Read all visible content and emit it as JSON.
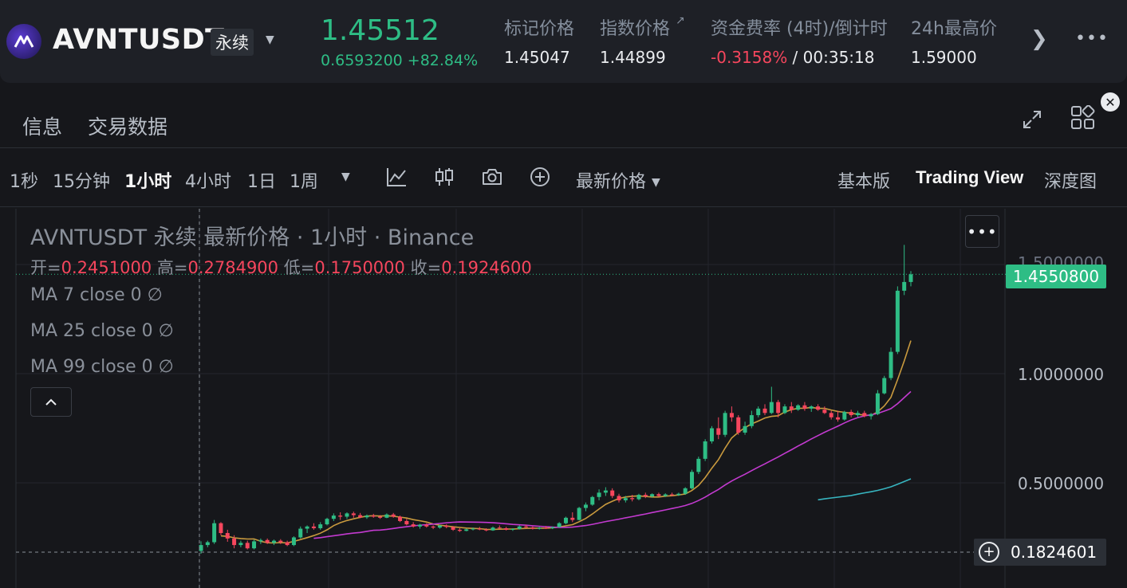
{
  "header": {
    "symbol": "AVNTUSDT",
    "contract_type": "永续",
    "last_price": "1.45512",
    "change_abs": "0.6593200",
    "change_pct": "+82.84%",
    "stats": [
      {
        "label": "标记价格",
        "value": "1.45047"
      },
      {
        "label": "指数价格",
        "value": "1.44899"
      },
      {
        "label": "资金费率 (4时)/倒计时",
        "funding_rate": "-0.3158%",
        "countdown": "00:35:18"
      },
      {
        "label": "24h最高价",
        "value": "1.59000"
      }
    ]
  },
  "tabs": [
    "信息",
    "交易数据"
  ],
  "toolbar": {
    "timeframes": [
      "1秒",
      "15分钟",
      "1小时",
      "4小时",
      "1日",
      "1周"
    ],
    "active_timeframe": "1小时",
    "price_type": "最新价格",
    "views": [
      "基本版",
      "Trading View",
      "深度图"
    ],
    "active_view": "Trading View"
  },
  "chart_legend": {
    "title": "AVNTUSDT 永续 最新价格 · 1小时 · Binance",
    "open_label": "开=",
    "open": "0.2451000",
    "high_label": "高=",
    "high": "0.2784900",
    "low_label": "低=",
    "low": "0.1750000",
    "close_label": "收=",
    "close": "0.1924600",
    "ma": [
      {
        "label": "MA 7 close 0",
        "value": "∅"
      },
      {
        "label": "MA 25 close 0",
        "value": "∅"
      },
      {
        "label": "MA 99 close 0",
        "value": "∅"
      }
    ]
  },
  "price_axis": {
    "labels": [
      "1.0000000",
      "0.5000000"
    ],
    "partial_label": "1.5000000",
    "last_price_tag": "1.4550800",
    "crosshair_price": "0.1824601"
  },
  "chart_data": {
    "type": "candlestick",
    "interval": "1小时",
    "y_axis_ticks": [
      0.5,
      1.0,
      1.5
    ],
    "last_price": 1.45508,
    "crosshair_price": 0.1824601,
    "candles": [
      [
        0.188,
        0.232,
        0.175,
        0.215
      ],
      [
        0.215,
        0.235,
        0.205,
        0.228
      ],
      [
        0.228,
        0.33,
        0.22,
        0.315
      ],
      [
        0.315,
        0.32,
        0.26,
        0.27
      ],
      [
        0.27,
        0.285,
        0.23,
        0.245
      ],
      [
        0.245,
        0.26,
        0.2,
        0.215
      ],
      [
        0.215,
        0.235,
        0.205,
        0.225
      ],
      [
        0.225,
        0.235,
        0.195,
        0.2
      ],
      [
        0.2,
        0.24,
        0.195,
        0.232
      ],
      [
        0.232,
        0.245,
        0.22,
        0.238
      ],
      [
        0.238,
        0.245,
        0.22,
        0.225
      ],
      [
        0.225,
        0.24,
        0.215,
        0.235
      ],
      [
        0.235,
        0.242,
        0.22,
        0.228
      ],
      [
        0.228,
        0.235,
        0.21,
        0.215
      ],
      [
        0.215,
        0.255,
        0.21,
        0.25
      ],
      [
        0.25,
        0.3,
        0.245,
        0.29
      ],
      [
        0.29,
        0.305,
        0.27,
        0.3
      ],
      [
        0.3,
        0.315,
        0.285,
        0.292
      ],
      [
        0.292,
        0.32,
        0.285,
        0.31
      ],
      [
        0.31,
        0.34,
        0.305,
        0.335
      ],
      [
        0.335,
        0.36,
        0.325,
        0.35
      ],
      [
        0.35,
        0.365,
        0.33,
        0.345
      ],
      [
        0.345,
        0.365,
        0.335,
        0.36
      ],
      [
        0.36,
        0.368,
        0.34,
        0.352
      ],
      [
        0.352,
        0.362,
        0.338,
        0.342
      ],
      [
        0.342,
        0.355,
        0.335,
        0.35
      ],
      [
        0.35,
        0.358,
        0.34,
        0.345
      ],
      [
        0.345,
        0.352,
        0.335,
        0.34
      ],
      [
        0.34,
        0.36,
        0.338,
        0.355
      ],
      [
        0.355,
        0.362,
        0.34,
        0.345
      ],
      [
        0.345,
        0.35,
        0.32,
        0.325
      ],
      [
        0.325,
        0.335,
        0.305,
        0.31
      ],
      [
        0.31,
        0.32,
        0.295,
        0.3
      ],
      [
        0.3,
        0.312,
        0.29,
        0.308
      ],
      [
        0.308,
        0.315,
        0.295,
        0.3
      ],
      [
        0.3,
        0.305,
        0.288,
        0.295
      ],
      [
        0.295,
        0.308,
        0.29,
        0.304
      ],
      [
        0.304,
        0.31,
        0.292,
        0.298
      ],
      [
        0.298,
        0.302,
        0.28,
        0.285
      ],
      [
        0.285,
        0.292,
        0.275,
        0.28
      ],
      [
        0.28,
        0.29,
        0.278,
        0.287
      ],
      [
        0.287,
        0.295,
        0.282,
        0.29
      ],
      [
        0.29,
        0.298,
        0.283,
        0.286
      ],
      [
        0.286,
        0.292,
        0.278,
        0.282
      ],
      [
        0.282,
        0.3,
        0.28,
        0.295
      ],
      [
        0.295,
        0.305,
        0.288,
        0.292
      ],
      [
        0.292,
        0.298,
        0.282,
        0.285
      ],
      [
        0.285,
        0.292,
        0.28,
        0.289
      ],
      [
        0.289,
        0.305,
        0.286,
        0.3
      ],
      [
        0.3,
        0.308,
        0.292,
        0.296
      ],
      [
        0.296,
        0.3,
        0.286,
        0.29
      ],
      [
        0.29,
        0.298,
        0.286,
        0.294
      ],
      [
        0.294,
        0.302,
        0.289,
        0.292
      ],
      [
        0.292,
        0.3,
        0.288,
        0.297
      ],
      [
        0.297,
        0.32,
        0.295,
        0.315
      ],
      [
        0.315,
        0.345,
        0.31,
        0.34
      ],
      [
        0.34,
        0.365,
        0.32,
        0.33
      ],
      [
        0.33,
        0.39,
        0.328,
        0.385
      ],
      [
        0.385,
        0.41,
        0.37,
        0.4
      ],
      [
        0.4,
        0.44,
        0.395,
        0.435
      ],
      [
        0.435,
        0.47,
        0.42,
        0.455
      ],
      [
        0.455,
        0.48,
        0.44,
        0.465
      ],
      [
        0.465,
        0.475,
        0.43,
        0.44
      ],
      [
        0.44,
        0.45,
        0.41,
        0.42
      ],
      [
        0.42,
        0.44,
        0.41,
        0.43
      ],
      [
        0.43,
        0.445,
        0.415,
        0.425
      ],
      [
        0.425,
        0.45,
        0.42,
        0.445
      ],
      [
        0.445,
        0.455,
        0.43,
        0.438
      ],
      [
        0.438,
        0.452,
        0.432,
        0.448
      ],
      [
        0.448,
        0.455,
        0.436,
        0.44
      ],
      [
        0.44,
        0.452,
        0.435,
        0.447
      ],
      [
        0.447,
        0.455,
        0.438,
        0.444
      ],
      [
        0.444,
        0.455,
        0.44,
        0.45
      ],
      [
        0.45,
        0.48,
        0.445,
        0.475
      ],
      [
        0.475,
        0.56,
        0.47,
        0.55
      ],
      [
        0.55,
        0.62,
        0.54,
        0.61
      ],
      [
        0.61,
        0.7,
        0.6,
        0.69
      ],
      [
        0.69,
        0.76,
        0.68,
        0.75
      ],
      [
        0.75,
        0.8,
        0.7,
        0.72
      ],
      [
        0.72,
        0.83,
        0.71,
        0.82
      ],
      [
        0.82,
        0.85,
        0.78,
        0.8
      ],
      [
        0.8,
        0.81,
        0.72,
        0.73
      ],
      [
        0.73,
        0.78,
        0.72,
        0.76
      ],
      [
        0.76,
        0.83,
        0.75,
        0.81
      ],
      [
        0.81,
        0.85,
        0.8,
        0.84
      ],
      [
        0.84,
        0.86,
        0.81,
        0.82
      ],
      [
        0.82,
        0.94,
        0.815,
        0.87
      ],
      [
        0.87,
        0.88,
        0.8,
        0.82
      ],
      [
        0.82,
        0.86,
        0.815,
        0.85
      ],
      [
        0.85,
        0.87,
        0.82,
        0.835
      ],
      [
        0.835,
        0.86,
        0.83,
        0.855
      ],
      [
        0.855,
        0.87,
        0.83,
        0.84
      ],
      [
        0.84,
        0.855,
        0.825,
        0.85
      ],
      [
        0.85,
        0.86,
        0.83,
        0.835
      ],
      [
        0.835,
        0.85,
        0.815,
        0.82
      ],
      [
        0.82,
        0.83,
        0.79,
        0.8
      ],
      [
        0.8,
        0.83,
        0.78,
        0.79
      ],
      [
        0.79,
        0.83,
        0.785,
        0.825
      ],
      [
        0.825,
        0.835,
        0.8,
        0.81
      ],
      [
        0.81,
        0.83,
        0.8,
        0.82
      ],
      [
        0.82,
        0.83,
        0.8,
        0.805
      ],
      [
        0.805,
        0.82,
        0.79,
        0.815
      ],
      [
        0.815,
        0.925,
        0.81,
        0.91
      ],
      [
        0.91,
        0.99,
        0.905,
        0.98
      ],
      [
        0.98,
        1.12,
        0.97,
        1.1
      ],
      [
        1.1,
        1.4,
        1.09,
        1.38
      ],
      [
        1.38,
        1.59,
        1.36,
        1.42
      ],
      [
        1.42,
        1.47,
        1.4,
        1.455
      ]
    ],
    "ma_lines": [
      {
        "name": "MA 7",
        "color": "#c99a3e"
      },
      {
        "name": "MA 25",
        "color": "#c33ad0"
      },
      {
        "name": "MA 99",
        "color": "#37b5c0"
      }
    ],
    "colors": {
      "up": "#2ebd85",
      "down": "#f6465d"
    }
  }
}
